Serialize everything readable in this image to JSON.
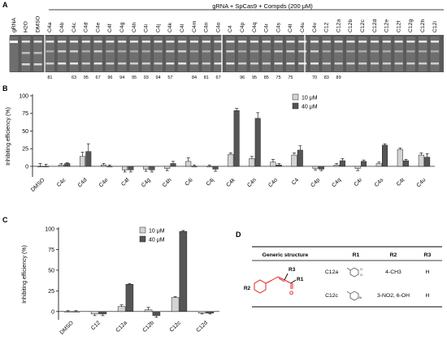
{
  "panels": {
    "a": "A",
    "b": "B",
    "c": "C",
    "d": "D"
  },
  "gel": {
    "header": "gRNA + SpCas9 + Compds (200 μM)",
    "lanes": [
      "gRNA",
      "H2O",
      "DMSO",
      "C4a",
      "C4b",
      "C4c",
      "C4d",
      "C4e",
      "C4f",
      "C4g",
      "C4h",
      "C4i",
      "C4j",
      "C4k",
      "C4l",
      "C4m",
      "C4n",
      "C4o",
      "C4",
      "C4p",
      "C4q",
      "C4r",
      "C4s",
      "C4t",
      "C4u",
      "C4v",
      "C12",
      "C12a",
      "C12b",
      "C12c",
      "C12d",
      "C12e",
      "C12f",
      "C12g",
      "C12h",
      "C12i"
    ],
    "lane_numbers": [
      "",
      "",
      "",
      "81",
      "",
      "63",
      "95",
      "67",
      "96",
      "94",
      "95",
      "93",
      "94",
      "57",
      "",
      "84",
      "81",
      "67",
      "",
      "96",
      "95",
      "85",
      "75",
      "75",
      "",
      "70",
      "83",
      "89",
      "",
      "",
      "",
      "",
      "",
      "",
      "",
      ""
    ]
  },
  "chart_data": [
    {
      "type": "bar",
      "title": "",
      "xlabel": "",
      "ylabel": "Inhibiting efficiency (%)",
      "ylim": [
        -15,
        100
      ],
      "yticks": [
        0,
        25,
        50,
        75,
        100
      ],
      "categories": [
        "DMSO",
        "C4c",
        "C4d",
        "C4e",
        "C4f",
        "C4g",
        "C4h",
        "C4i",
        "C4j",
        "C4k",
        "C4n",
        "C4o",
        "C4",
        "C4p",
        "C4q",
        "C4r",
        "C4s",
        "C4t",
        "C4u"
      ],
      "series": [
        {
          "name": "10 μM",
          "color": "#d4d4d4",
          "values": [
            0,
            2,
            14,
            2,
            -5,
            -4,
            -3,
            7,
            0,
            17,
            11,
            6,
            16,
            -3,
            2,
            -3,
            4,
            24,
            16
          ],
          "errors": [
            4,
            2,
            6,
            2,
            3,
            3,
            3,
            5,
            2,
            2,
            3,
            4,
            3,
            2,
            2,
            3,
            2,
            2,
            3
          ]
        },
        {
          "name": "40 μM",
          "color": "#555555",
          "values": [
            0,
            4,
            21,
            0,
            -5,
            -5,
            4,
            0,
            -4,
            79,
            68,
            2,
            23,
            -4,
            8,
            7,
            30,
            8,
            13
          ],
          "errors": [
            3,
            1,
            11,
            2,
            3,
            3,
            3,
            2,
            3,
            3,
            8,
            2,
            6,
            2,
            3,
            2,
            2,
            2,
            5
          ]
        }
      ],
      "legend_position": "top-right"
    },
    {
      "type": "bar",
      "title": "",
      "xlabel": "",
      "ylabel": "Inhibiting efficiency (%)",
      "ylim": [
        -10,
        100
      ],
      "yticks": [
        0,
        25,
        50,
        75,
        100
      ],
      "categories": [
        "DMSO",
        "C12",
        "C12a",
        "C12b",
        "C12c",
        "C12d"
      ],
      "series": [
        {
          "name": "10 μM",
          "color": "#d4d4d4",
          "values": [
            0,
            -3,
            6,
            2,
            17,
            -2
          ],
          "errors": [
            1,
            2,
            2,
            3,
            1,
            1
          ]
        },
        {
          "name": "40 μM",
          "color": "#555555",
          "values": [
            0,
            -3,
            33,
            -5,
            97,
            -2
          ],
          "errors": [
            1,
            2,
            1,
            2,
            1,
            1
          ]
        }
      ],
      "legend_position": "top-left"
    }
  ],
  "table": {
    "headers": [
      "Generic structure",
      "R1",
      "R2",
      "R3"
    ],
    "rows": [
      {
        "compound": "C12a",
        "r2": "4-CH3",
        "r3": "H"
      },
      {
        "compound": "C12c",
        "r2": "3-NO2, 6-OH",
        "r3": "H"
      }
    ],
    "struct_r1": "R1",
    "struct_r2": "R2",
    "struct_r3": "R3",
    "struct_o": "O"
  }
}
